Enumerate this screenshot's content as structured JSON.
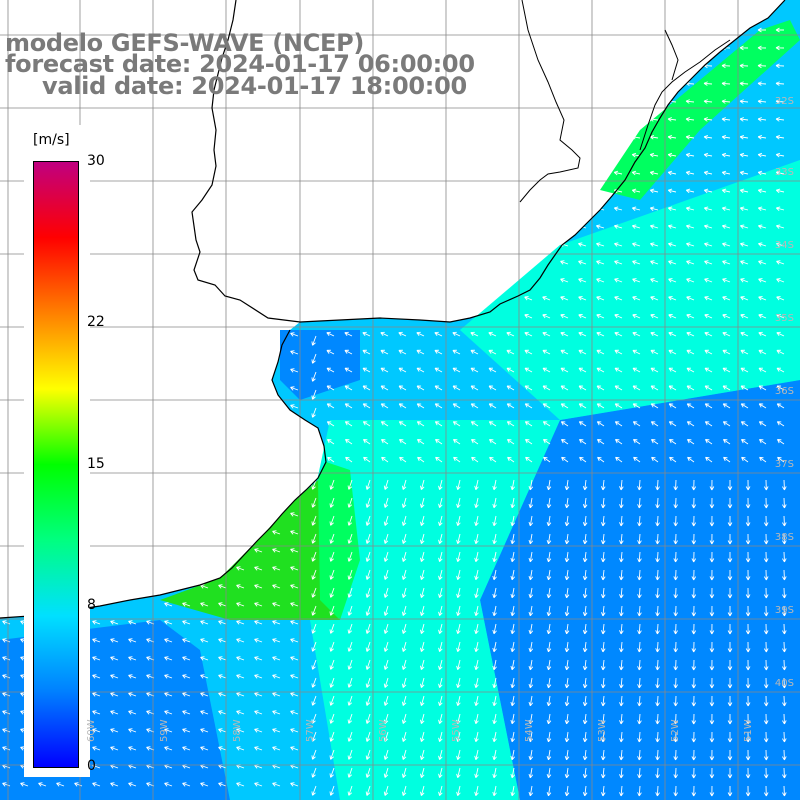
{
  "header": {
    "line1": "modelo GEFS-WAVE (NCEP)",
    "line2": "forecast date: 2024-01-17 06:00:00",
    "line3": "valid date: 2024-01-17 18:00:00"
  },
  "colorbar": {
    "unit": "[m/s]",
    "ticks": [
      {
        "label": "30",
        "value": 30
      },
      {
        "label": "22",
        "value": 22
      },
      {
        "label": "15",
        "value": 15
      },
      {
        "label": "8",
        "value": 8
      },
      {
        "label": "0",
        "value": 0
      }
    ],
    "colors": [
      "#0000ff",
      "#0080ff",
      "#00e0ff",
      "#00ff80",
      "#00ff00",
      "#ffff00",
      "#ff8000",
      "#ff0000",
      "#c00080"
    ]
  },
  "map": {
    "lat_labels": [
      "32S",
      "33S",
      "34S",
      "35S",
      "36S",
      "37S",
      "38S",
      "39S",
      "40S"
    ],
    "lon_labels": [
      "60W",
      "59W",
      "58W",
      "57W",
      "56W",
      "55W",
      "54W",
      "53W",
      "52W",
      "51W"
    ],
    "colors": {
      "land": "#ffffff",
      "coast": "#000000",
      "grid": "#888888",
      "ocean_deep": "#0088ff",
      "ocean_mid": "#00c8ff",
      "ocean_light": "#00ffe0",
      "ocean_green": "#00ff60",
      "ocean_strong": "#20e020",
      "arrow": "#ffffff"
    }
  }
}
